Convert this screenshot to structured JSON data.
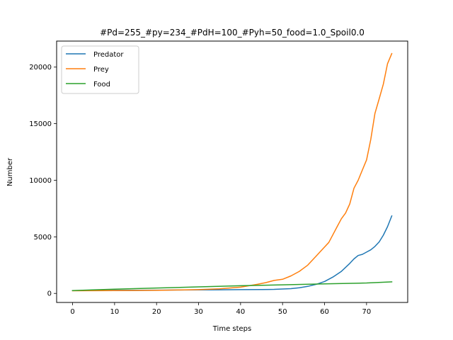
{
  "chart_data": {
    "type": "line",
    "title": "#Pd=255_#py=234_#PdH=100_#Pyh=50_food=1.0_Spoil0.0",
    "xlabel": "Time steps",
    "ylabel": "Number",
    "xlim": [
      -3.8,
      79.8
    ],
    "ylim": [
      -800,
      22300
    ],
    "xticks": [
      0,
      10,
      20,
      30,
      40,
      50,
      60,
      70
    ],
    "yticks": [
      0,
      5000,
      10000,
      15000,
      20000
    ],
    "grid": false,
    "legend_position": "top-left",
    "series": [
      {
        "name": "Predator",
        "color": "#1f77b4",
        "x": [
          0,
          5,
          10,
          15,
          20,
          25,
          30,
          35,
          40,
          45,
          48,
          50,
          52,
          54,
          56,
          58,
          60,
          62,
          64,
          66,
          67,
          68,
          69,
          70,
          71,
          72,
          73,
          74,
          75,
          76
        ],
        "y": [
          250,
          260,
          270,
          280,
          290,
          300,
          310,
          320,
          330,
          340,
          360,
          390,
          420,
          500,
          620,
          800,
          1050,
          1450,
          1950,
          2650,
          3050,
          3350,
          3450,
          3650,
          3850,
          4150,
          4550,
          5150,
          5900,
          6850
        ]
      },
      {
        "name": "Prey",
        "color": "#ff7f0e",
        "x": [
          0,
          5,
          10,
          15,
          20,
          25,
          30,
          35,
          40,
          44,
          46,
          48,
          50,
          52,
          54,
          56,
          58,
          60,
          61,
          62,
          63,
          64,
          65,
          66,
          67,
          68,
          69,
          70,
          71,
          72,
          73,
          74,
          75,
          76
        ],
        "y": [
          234,
          240,
          245,
          255,
          270,
          300,
          330,
          400,
          550,
          800,
          950,
          1150,
          1250,
          1550,
          1950,
          2500,
          3300,
          4100,
          4500,
          5200,
          5900,
          6600,
          7100,
          7900,
          9300,
          10000,
          10900,
          11800,
          13600,
          15900,
          17200,
          18500,
          20300,
          21200
        ]
      },
      {
        "name": "Food",
        "color": "#2ca02c",
        "x": [
          0,
          10,
          20,
          30,
          40,
          50,
          60,
          70,
          76
        ],
        "y": [
          250,
          380,
          480,
          580,
          680,
          760,
          840,
          920,
          1020
        ]
      }
    ]
  }
}
